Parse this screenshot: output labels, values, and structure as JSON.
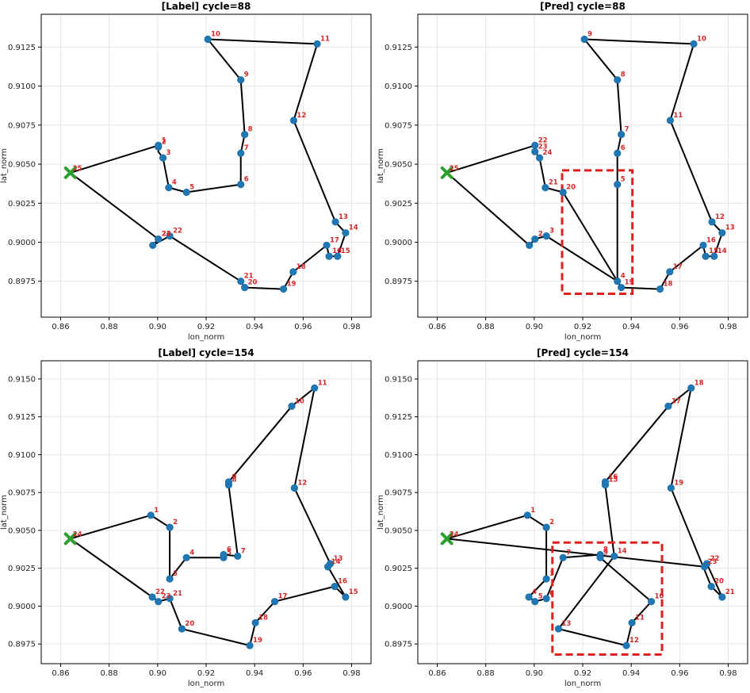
{
  "colors": {
    "route": "#000000",
    "node": "#1f77b4",
    "depot": "#2ca02c",
    "label": "#d62728",
    "highlight": "#e01f1f",
    "grid": "#e6e6e6"
  },
  "chart_data": [
    {
      "type": "line",
      "title": "[Label] cycle=88",
      "xlabel": "lon_norm",
      "ylabel": "lat_norm",
      "xlim": [
        0.852,
        0.988
      ],
      "ylim": [
        0.8952,
        0.9146
      ],
      "xticks": [
        "0.86",
        "0.88",
        "0.90",
        "0.92",
        "0.94",
        "0.96",
        "0.98"
      ],
      "yticks": [
        "0.8975",
        "0.9000",
        "0.9025",
        "0.9050",
        "0.9075",
        "0.9100",
        "0.9125"
      ],
      "grid": true,
      "depot": {
        "label": "25",
        "x": 0.864,
        "y": 0.90445
      },
      "stops": [
        {
          "label": "2",
          "x": 0.9003,
          "y": 0.9061
        },
        {
          "label": "1",
          "x": 0.9003,
          "y": 0.9062
        },
        {
          "label": "3",
          "x": 0.9022,
          "y": 0.9054
        },
        {
          "label": "4",
          "x": 0.9046,
          "y": 0.9035
        },
        {
          "label": "5",
          "x": 0.9119,
          "y": 0.9032
        },
        {
          "label": "6",
          "x": 0.9343,
          "y": 0.9037
        },
        {
          "label": "7",
          "x": 0.9343,
          "y": 0.9057
        },
        {
          "label": "8",
          "x": 0.9359,
          "y": 0.9069
        },
        {
          "label": "9",
          "x": 0.9343,
          "y": 0.9104
        },
        {
          "label": "10",
          "x": 0.9207,
          "y": 0.913
        },
        {
          "label": "11",
          "x": 0.9658,
          "y": 0.9127
        },
        {
          "label": "12",
          "x": 0.9561,
          "y": 0.9078
        },
        {
          "label": "13",
          "x": 0.9733,
          "y": 0.9013
        },
        {
          "label": "14",
          "x": 0.9775,
          "y": 0.9006
        },
        {
          "label": "15",
          "x": 0.9742,
          "y": 0.8991
        },
        {
          "label": "16",
          "x": 0.9707,
          "y": 0.8991
        },
        {
          "label": "17",
          "x": 0.9697,
          "y": 0.8998
        },
        {
          "label": "18",
          "x": 0.9559,
          "y": 0.8981
        },
        {
          "label": "19",
          "x": 0.9519,
          "y": 0.897
        },
        {
          "label": "20",
          "x": 0.9359,
          "y": 0.8971
        },
        {
          "label": "21",
          "x": 0.9343,
          "y": 0.8975
        },
        {
          "label": "22",
          "x": 0.905,
          "y": 0.9004
        },
        {
          "label": "23",
          "x": 0.9003,
          "y": 0.9002
        },
        {
          "label": "24",
          "x": 0.9003,
          "y": 0.9002
        },
        {
          "label": "",
          "x": 0.898,
          "y": 0.8998
        }
      ],
      "route": [
        [
          0.864,
          0.90445
        ],
        [
          0.9003,
          0.9062
        ],
        [
          0.9003,
          0.9058
        ],
        [
          0.9022,
          0.9054
        ],
        [
          0.9046,
          0.9035
        ],
        [
          0.9119,
          0.9032
        ],
        [
          0.9343,
          0.9037
        ],
        [
          0.9343,
          0.9057
        ],
        [
          0.9359,
          0.9069
        ],
        [
          0.9343,
          0.9104
        ],
        [
          0.9207,
          0.913
        ],
        [
          0.9658,
          0.9127
        ],
        [
          0.9561,
          0.9078
        ],
        [
          0.9733,
          0.9013
        ],
        [
          0.9775,
          0.9006
        ],
        [
          0.9742,
          0.8991
        ],
        [
          0.9707,
          0.8991
        ],
        [
          0.9697,
          0.8998
        ],
        [
          0.9559,
          0.8981
        ],
        [
          0.9519,
          0.897
        ],
        [
          0.9359,
          0.8971
        ],
        [
          0.9343,
          0.8975
        ],
        [
          0.905,
          0.9004
        ],
        [
          0.898,
          0.8998
        ],
        [
          0.9003,
          0.9002
        ],
        [
          0.864,
          0.90445
        ]
      ],
      "highlight": null
    },
    {
      "type": "line",
      "title": "[Pred] cycle=88",
      "xlabel": "lon_norm",
      "ylabel": "lat_norm",
      "xlim": [
        0.852,
        0.988
      ],
      "ylim": [
        0.8952,
        0.9146
      ],
      "xticks": [
        "0.86",
        "0.88",
        "0.90",
        "0.92",
        "0.94",
        "0.96",
        "0.98"
      ],
      "yticks": [
        "0.8975",
        "0.9000",
        "0.9025",
        "0.9050",
        "0.9075",
        "0.9100",
        "0.9125"
      ],
      "grid": true,
      "depot": {
        "label": "25",
        "x": 0.864,
        "y": 0.90445
      },
      "stops": [
        {
          "label": "",
          "x": 0.898,
          "y": 0.8998
        },
        {
          "label": "2",
          "x": 0.9003,
          "y": 0.9002
        },
        {
          "label": "3",
          "x": 0.905,
          "y": 0.9004
        },
        {
          "label": "4",
          "x": 0.9343,
          "y": 0.8975
        },
        {
          "label": "19",
          "x": 0.9359,
          "y": 0.8971
        },
        {
          "label": "5",
          "x": 0.9343,
          "y": 0.9037
        },
        {
          "label": "6",
          "x": 0.9343,
          "y": 0.9057
        },
        {
          "label": "7",
          "x": 0.9359,
          "y": 0.9069
        },
        {
          "label": "8",
          "x": 0.9343,
          "y": 0.9104
        },
        {
          "label": "9",
          "x": 0.9207,
          "y": 0.913
        },
        {
          "label": "10",
          "x": 0.9658,
          "y": 0.9127
        },
        {
          "label": "11",
          "x": 0.9561,
          "y": 0.9078
        },
        {
          "label": "12",
          "x": 0.9733,
          "y": 0.9013
        },
        {
          "label": "13",
          "x": 0.9775,
          "y": 0.9006
        },
        {
          "label": "14",
          "x": 0.9742,
          "y": 0.8991
        },
        {
          "label": "15",
          "x": 0.9707,
          "y": 0.8991
        },
        {
          "label": "16",
          "x": 0.9697,
          "y": 0.8998
        },
        {
          "label": "17",
          "x": 0.9559,
          "y": 0.8981
        },
        {
          "label": "18",
          "x": 0.9519,
          "y": 0.897
        },
        {
          "label": "20",
          "x": 0.9119,
          "y": 0.9032
        },
        {
          "label": "21",
          "x": 0.9046,
          "y": 0.9035
        },
        {
          "label": "24",
          "x": 0.9022,
          "y": 0.9054
        },
        {
          "label": "23",
          "x": 0.9003,
          "y": 0.9058
        },
        {
          "label": "22",
          "x": 0.9003,
          "y": 0.9062
        }
      ],
      "route": [
        [
          0.864,
          0.90445
        ],
        [
          0.898,
          0.8998
        ],
        [
          0.9003,
          0.9002
        ],
        [
          0.905,
          0.9004
        ],
        [
          0.9343,
          0.8975
        ],
        [
          0.9343,
          0.9037
        ],
        [
          0.9343,
          0.9057
        ],
        [
          0.9359,
          0.9069
        ],
        [
          0.9343,
          0.9104
        ],
        [
          0.9207,
          0.913
        ],
        [
          0.9658,
          0.9127
        ],
        [
          0.9561,
          0.9078
        ],
        [
          0.9733,
          0.9013
        ],
        [
          0.9775,
          0.9006
        ],
        [
          0.9742,
          0.8991
        ],
        [
          0.9707,
          0.8991
        ],
        [
          0.9697,
          0.8998
        ],
        [
          0.9559,
          0.8981
        ],
        [
          0.9519,
          0.897
        ],
        [
          0.9359,
          0.8971
        ],
        [
          0.9343,
          0.8975
        ],
        [
          0.9119,
          0.9032
        ],
        [
          0.9046,
          0.9035
        ],
        [
          0.9022,
          0.9054
        ],
        [
          0.9003,
          0.9058
        ],
        [
          0.9003,
          0.9062
        ],
        [
          0.864,
          0.90445
        ]
      ],
      "highlight": {
        "x0": 0.9115,
        "x1": 0.9405,
        "y0": 0.8967,
        "y1": 0.9046
      }
    },
    {
      "type": "line",
      "title": "[Label] cycle=154",
      "xlabel": "lon_norm",
      "ylabel": "lat_norm",
      "xlim": [
        0.852,
        0.988
      ],
      "ylim": [
        0.8962,
        0.9162
      ],
      "xticks": [
        "0.86",
        "0.88",
        "0.90",
        "0.92",
        "0.94",
        "0.96",
        "0.98"
      ],
      "yticks": [
        "0.8975",
        "0.9000",
        "0.9025",
        "0.9050",
        "0.9075",
        "0.9100",
        "0.9125",
        "0.9150"
      ],
      "grid": true,
      "depot": {
        "label": "24",
        "x": 0.864,
        "y": 0.90445
      },
      "stops": [
        {
          "label": "1",
          "x": 0.8972,
          "y": 0.906
        },
        {
          "label": "2",
          "x": 0.905,
          "y": 0.9052
        },
        {
          "label": "3",
          "x": 0.905,
          "y": 0.9018
        },
        {
          "label": "4",
          "x": 0.9119,
          "y": 0.9032
        },
        {
          "label": "5",
          "x": 0.9272,
          "y": 0.9032
        },
        {
          "label": "6",
          "x": 0.9272,
          "y": 0.9034
        },
        {
          "label": "7",
          "x": 0.933,
          "y": 0.9033
        },
        {
          "label": "8",
          "x": 0.9293,
          "y": 0.908
        },
        {
          "label": "9",
          "x": 0.9293,
          "y": 0.9082
        },
        {
          "label": "10",
          "x": 0.9553,
          "y": 0.9132
        },
        {
          "label": "11",
          "x": 0.9647,
          "y": 0.9144
        },
        {
          "label": "12",
          "x": 0.9564,
          "y": 0.9078
        },
        {
          "label": "13",
          "x": 0.9712,
          "y": 0.9028
        },
        {
          "label": "14",
          "x": 0.9702,
          "y": 0.9026
        },
        {
          "label": "15",
          "x": 0.9775,
          "y": 0.9006
        },
        {
          "label": "16",
          "x": 0.973,
          "y": 0.9013
        },
        {
          "label": "17",
          "x": 0.9483,
          "y": 0.9003
        },
        {
          "label": "18",
          "x": 0.9403,
          "y": 0.8989
        },
        {
          "label": "19",
          "x": 0.938,
          "y": 0.8974
        },
        {
          "label": "20",
          "x": 0.91,
          "y": 0.8985
        },
        {
          "label": "21",
          "x": 0.905,
          "y": 0.9005
        },
        {
          "label": "22",
          "x": 0.8978,
          "y": 0.9006
        },
        {
          "label": "23",
          "x": 0.9003,
          "y": 0.9003
        }
      ],
      "route": [
        [
          0.864,
          0.90445
        ],
        [
          0.8972,
          0.906
        ],
        [
          0.905,
          0.9052
        ],
        [
          0.905,
          0.9018
        ],
        [
          0.9119,
          0.9032
        ],
        [
          0.9272,
          0.9032
        ],
        [
          0.9272,
          0.9034
        ],
        [
          0.933,
          0.9033
        ],
        [
          0.9293,
          0.908
        ],
        [
          0.9293,
          0.9082
        ],
        [
          0.9553,
          0.9132
        ],
        [
          0.9647,
          0.9144
        ],
        [
          0.9564,
          0.9078
        ],
        [
          0.9712,
          0.9028
        ],
        [
          0.9702,
          0.9026
        ],
        [
          0.9775,
          0.9006
        ],
        [
          0.973,
          0.9013
        ],
        [
          0.9483,
          0.9003
        ],
        [
          0.9403,
          0.8989
        ],
        [
          0.938,
          0.8974
        ],
        [
          0.91,
          0.8985
        ],
        [
          0.905,
          0.9005
        ],
        [
          0.9003,
          0.9003
        ],
        [
          0.8978,
          0.9006
        ],
        [
          0.864,
          0.90445
        ]
      ],
      "highlight": null
    },
    {
      "type": "line",
      "title": "[Pred] cycle=154",
      "xlabel": "lon_norm",
      "ylabel": "lat_norm",
      "xlim": [
        0.852,
        0.988
      ],
      "ylim": [
        0.8962,
        0.9162
      ],
      "xticks": [
        "0.86",
        "0.88",
        "0.90",
        "0.92",
        "0.94",
        "0.96",
        "0.98"
      ],
      "yticks": [
        "0.8975",
        "0.9000",
        "0.9025",
        "0.9050",
        "0.9075",
        "0.9100",
        "0.9125",
        "0.9150"
      ],
      "grid": true,
      "depot": {
        "label": "24",
        "x": 0.864,
        "y": 0.90445
      },
      "stops": [
        {
          "label": "1",
          "x": 0.8972,
          "y": 0.906
        },
        {
          "label": "2",
          "x": 0.905,
          "y": 0.9052
        },
        {
          "label": "3",
          "x": 0.905,
          "y": 0.9018
        },
        {
          "label": "4",
          "x": 0.8978,
          "y": 0.9006
        },
        {
          "label": "5",
          "x": 0.9003,
          "y": 0.9003
        },
        {
          "label": "6",
          "x": 0.905,
          "y": 0.9005
        },
        {
          "label": "7",
          "x": 0.9119,
          "y": 0.9032
        },
        {
          "label": "8",
          "x": 0.9272,
          "y": 0.9034
        },
        {
          "label": "9",
          "x": 0.9272,
          "y": 0.9032
        },
        {
          "label": "10",
          "x": 0.9483,
          "y": 0.9003
        },
        {
          "label": "11",
          "x": 0.9403,
          "y": 0.8989
        },
        {
          "label": "12",
          "x": 0.938,
          "y": 0.8974
        },
        {
          "label": "13",
          "x": 0.91,
          "y": 0.8985
        },
        {
          "label": "14",
          "x": 0.933,
          "y": 0.9033
        },
        {
          "label": "15",
          "x": 0.9293,
          "y": 0.908
        },
        {
          "label": "16",
          "x": 0.9293,
          "y": 0.9082
        },
        {
          "label": "17",
          "x": 0.9553,
          "y": 0.9132
        },
        {
          "label": "18",
          "x": 0.9647,
          "y": 0.9144
        },
        {
          "label": "19",
          "x": 0.9564,
          "y": 0.9078
        },
        {
          "label": "20",
          "x": 0.973,
          "y": 0.9013
        },
        {
          "label": "21",
          "x": 0.9775,
          "y": 0.9006
        },
        {
          "label": "22",
          "x": 0.9712,
          "y": 0.9028
        },
        {
          "label": "23",
          "x": 0.9702,
          "y": 0.9026
        }
      ],
      "route": [
        [
          0.864,
          0.90445
        ],
        [
          0.8972,
          0.906
        ],
        [
          0.905,
          0.9052
        ],
        [
          0.905,
          0.9018
        ],
        [
          0.8978,
          0.9006
        ],
        [
          0.9003,
          0.9003
        ],
        [
          0.905,
          0.9005
        ],
        [
          0.9119,
          0.9032
        ],
        [
          0.9272,
          0.9034
        ],
        [
          0.9272,
          0.9032
        ],
        [
          0.9483,
          0.9003
        ],
        [
          0.9403,
          0.8989
        ],
        [
          0.938,
          0.8974
        ],
        [
          0.91,
          0.8985
        ],
        [
          0.933,
          0.9033
        ],
        [
          0.9293,
          0.908
        ],
        [
          0.9293,
          0.9082
        ],
        [
          0.9553,
          0.9132
        ],
        [
          0.9647,
          0.9144
        ],
        [
          0.9564,
          0.9078
        ],
        [
          0.973,
          0.9013
        ],
        [
          0.9775,
          0.9006
        ],
        [
          0.9712,
          0.9028
        ],
        [
          0.9702,
          0.9026
        ],
        [
          0.864,
          0.90445
        ]
      ],
      "highlight": {
        "x0": 0.9075,
        "x1": 0.9527,
        "y0": 0.8968,
        "y1": 0.9042
      }
    }
  ]
}
